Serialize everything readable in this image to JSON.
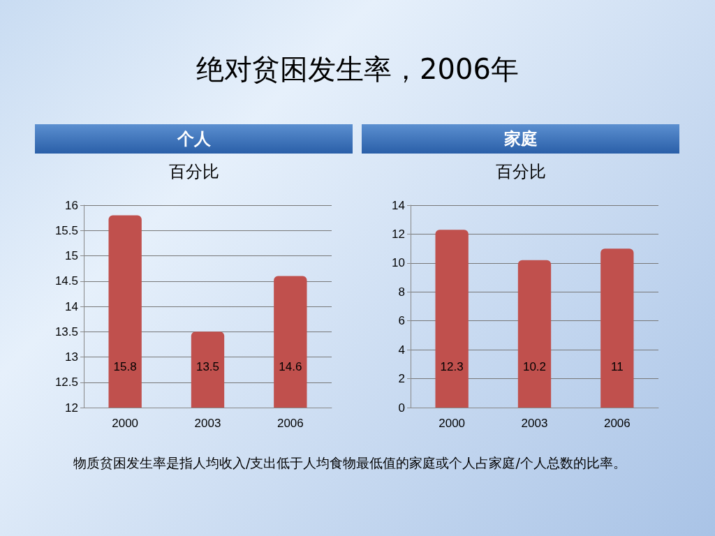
{
  "chart_data": [
    {
      "type": "bar",
      "title": "个人",
      "subtitle": "百分比",
      "categories": [
        "2000",
        "2003",
        "2006"
      ],
      "values": [
        15.8,
        13.5,
        14.6
      ],
      "color": "#c0504d",
      "ylim": [
        12,
        16
      ],
      "yticks": [
        12,
        12.5,
        13,
        13.5,
        14,
        14.5,
        15,
        15.5,
        16
      ],
      "grid": "y",
      "data_labels": true,
      "annotations": [
        "绝对贫困发生率，2006年",
        "物质贫困发生率是指人均收入/支出低于人均食物最低值的家庭或个人占家庭/个人总数的比率。"
      ]
    },
    {
      "type": "bar",
      "title": "家庭",
      "subtitle": "百分比",
      "categories": [
        "2000",
        "2003",
        "2006"
      ],
      "values": [
        12.3,
        10.2,
        11
      ],
      "color": "#c0504d",
      "ylim": [
        0,
        14
      ],
      "yticks": [
        0,
        2,
        4,
        6,
        8,
        10,
        12,
        14
      ],
      "grid": "y",
      "data_labels": true
    }
  ]
}
